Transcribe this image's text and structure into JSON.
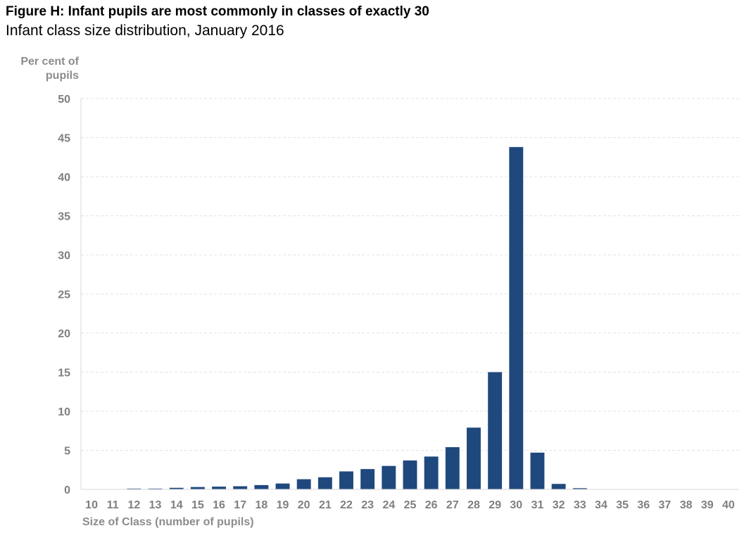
{
  "chart_data": {
    "type": "bar",
    "title": "Figure H: Infant pupils are most commonly in classes of exactly 30",
    "subtitle": "Infant class size distribution, January 2016",
    "ylabel": "Per cent of pupils",
    "xlabel": "Size of Class (number of pupils)",
    "ylim": [
      0,
      50
    ],
    "yticks": [
      0,
      5,
      10,
      15,
      20,
      25,
      30,
      35,
      40,
      45,
      50
    ],
    "grid": true,
    "bar_color": "#1f497d",
    "categories": [
      "10",
      "11",
      "12",
      "13",
      "14",
      "15",
      "16",
      "17",
      "18",
      "19",
      "20",
      "21",
      "22",
      "23",
      "24",
      "25",
      "26",
      "27",
      "28",
      "29",
      "30",
      "31",
      "32",
      "33",
      "34",
      "35",
      "36",
      "37",
      "38",
      "39",
      "40"
    ],
    "values": [
      0,
      0,
      0.1,
      0.1,
      0.2,
      0.3,
      0.35,
      0.4,
      0.55,
      0.75,
      1.3,
      1.55,
      2.3,
      2.6,
      3.0,
      3.7,
      4.2,
      5.4,
      7.9,
      15.0,
      43.8,
      4.7,
      0.7,
      0.15,
      0,
      0,
      0,
      0,
      0,
      0,
      0
    ]
  }
}
